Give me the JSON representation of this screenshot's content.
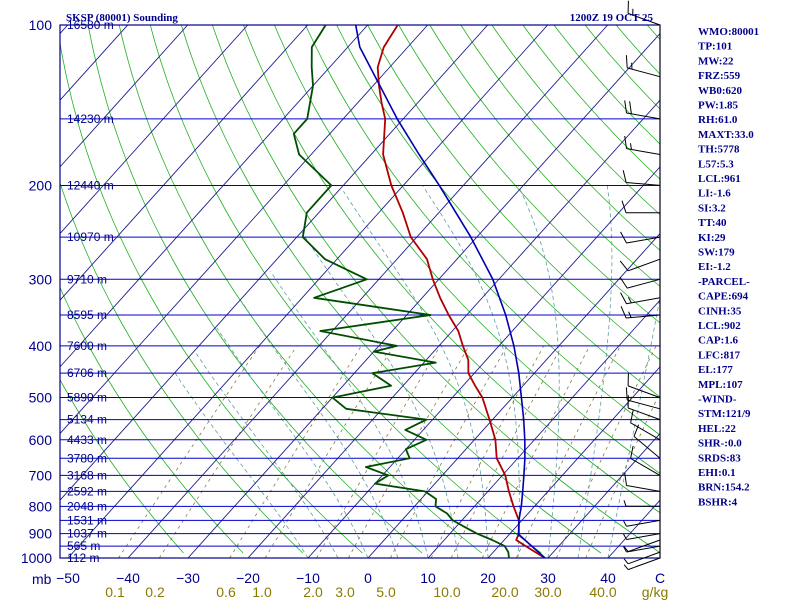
{
  "header": {
    "station": "SKSP (80001) Sounding",
    "time": "1200Z 19 OCT 25"
  },
  "colors": {
    "frame": "#00008b",
    "isobar": "#0000cd",
    "isotherm": "#1e1e8c",
    "dry_adiabat": "#22b022",
    "moist_adiabat": "#5f9ea0",
    "mixing_ratio": "#8b7a3a",
    "temperature": "#b00000",
    "dewpoint": "#004d00",
    "parcel": "#0000b0",
    "wind": "#000000"
  },
  "chart_data": {
    "type": "line",
    "title": "",
    "pressure_levels": [
      100,
      200,
      300,
      400,
      500,
      600,
      700,
      800,
      900,
      1000
    ],
    "pressure_axis_unit": "mb",
    "temperature_ticks": [
      -50,
      -40,
      -30,
      -20,
      -10,
      0,
      10,
      20,
      30,
      40,
      "C"
    ],
    "mixing_ratio_labels": [
      "0.1",
      "0.2",
      "0.6",
      "1.0",
      "2.0",
      "3.0",
      "5.0",
      "10.0",
      "20.0",
      "30.0",
      "40.0",
      "g/kg"
    ],
    "height_labels": [
      {
        "p": 100,
        "label": "16580 m"
      },
      {
        "p": 150,
        "label": "14230 m"
      },
      {
        "p": 200,
        "label": "12440 m"
      },
      {
        "p": 250,
        "label": "10970 m"
      },
      {
        "p": 300,
        "label": "9710 m"
      },
      {
        "p": 350,
        "label": "8595 m"
      },
      {
        "p": 400,
        "label": "7600 m"
      },
      {
        "p": 450,
        "label": "6706 m"
      },
      {
        "p": 500,
        "label": "5890 m"
      },
      {
        "p": 550,
        "label": "5134 m"
      },
      {
        "p": 600,
        "label": "4433 m"
      },
      {
        "p": 650,
        "label": "3780 m"
      },
      {
        "p": 700,
        "label": "3168 m"
      },
      {
        "p": 750,
        "label": "2592 m"
      },
      {
        "p": 800,
        "label": "2048 m"
      },
      {
        "p": 850,
        "label": "1531 m"
      },
      {
        "p": 900,
        "label": "1037 m"
      },
      {
        "p": 950,
        "label": "565 m"
      },
      {
        "p": 1000,
        "label": "112 m"
      }
    ],
    "series": [
      {
        "key": "temperature",
        "points": [
          [
            1000,
            29.5
          ],
          [
            975,
            27
          ],
          [
            950,
            24.5
          ],
          [
            925,
            22
          ],
          [
            900,
            21.5
          ],
          [
            875,
            20.5
          ],
          [
            850,
            19.5
          ],
          [
            800,
            16.5
          ],
          [
            750,
            13.5
          ],
          [
            700,
            10.5
          ],
          [
            650,
            6.5
          ],
          [
            600,
            3.5
          ],
          [
            550,
            -0.5
          ],
          [
            500,
            -5
          ],
          [
            475,
            -8
          ],
          [
            450,
            -11
          ],
          [
            425,
            -13
          ],
          [
            400,
            -16
          ],
          [
            375,
            -19
          ],
          [
            350,
            -23
          ],
          [
            325,
            -27
          ],
          [
            300,
            -31
          ],
          [
            275,
            -35
          ],
          [
            250,
            -41
          ],
          [
            225,
            -46
          ],
          [
            200,
            -52
          ],
          [
            175,
            -58
          ],
          [
            150,
            -63
          ],
          [
            140,
            -66
          ],
          [
            130,
            -69
          ],
          [
            120,
            -72
          ],
          [
            110,
            -74
          ],
          [
            100,
            -75
          ]
        ]
      },
      {
        "key": "dewpoint",
        "points": [
          [
            1000,
            23.5
          ],
          [
            975,
            22.5
          ],
          [
            950,
            21
          ],
          [
            925,
            18
          ],
          [
            900,
            14.5
          ],
          [
            875,
            11.5
          ],
          [
            850,
            8.5
          ],
          [
            825,
            6.5
          ],
          [
            800,
            3.5
          ],
          [
            775,
            2.5
          ],
          [
            750,
            -0.5
          ],
          [
            725,
            -10
          ],
          [
            700,
            -9
          ],
          [
            675,
            -14
          ],
          [
            650,
            -8
          ],
          [
            625,
            -10
          ],
          [
            600,
            -8
          ],
          [
            575,
            -13
          ],
          [
            550,
            -11
          ],
          [
            525,
            -26
          ],
          [
            500,
            -30
          ],
          [
            475,
            -22
          ],
          [
            450,
            -27
          ],
          [
            430,
            -18
          ],
          [
            410,
            -30
          ],
          [
            400,
            -27
          ],
          [
            375,
            -42
          ],
          [
            350,
            -26
          ],
          [
            325,
            -48
          ],
          [
            300,
            -42
          ],
          [
            275,
            -52
          ],
          [
            250,
            -59
          ],
          [
            225,
            -62
          ],
          [
            200,
            -62
          ],
          [
            175,
            -72
          ],
          [
            160,
            -76
          ],
          [
            150,
            -76
          ],
          [
            130,
            -80
          ],
          [
            120,
            -83
          ],
          [
            110,
            -86
          ],
          [
            100,
            -87
          ]
        ]
      },
      {
        "key": "parcel",
        "points": [
          [
            1000,
            29.5
          ],
          [
            950,
            25.5
          ],
          [
            902,
            21.5
          ],
          [
            875,
            20.5
          ],
          [
            850,
            19.5
          ],
          [
            800,
            17.8
          ],
          [
            750,
            15.8
          ],
          [
            700,
            13.6
          ],
          [
            650,
            11.2
          ],
          [
            600,
            8.4
          ],
          [
            550,
            5.2
          ],
          [
            500,
            1.5
          ],
          [
            450,
            -2.6
          ],
          [
            400,
            -7.5
          ],
          [
            350,
            -13.5
          ],
          [
            300,
            -21
          ],
          [
            250,
            -31
          ],
          [
            200,
            -44
          ],
          [
            175,
            -52
          ],
          [
            150,
            -61
          ],
          [
            125,
            -71
          ],
          [
            110,
            -78
          ],
          [
            100,
            -82
          ]
        ]
      }
    ],
    "wind_barbs": [
      {
        "p": 100,
        "dir": 290,
        "kt": 15
      },
      {
        "p": 125,
        "dir": 285,
        "kt": 15
      },
      {
        "p": 150,
        "dir": 280,
        "kt": 20
      },
      {
        "p": 175,
        "dir": 280,
        "kt": 15
      },
      {
        "p": 200,
        "dir": 275,
        "kt": 10
      },
      {
        "p": 225,
        "dir": 270,
        "kt": 10
      },
      {
        "p": 250,
        "dir": 260,
        "kt": 10
      },
      {
        "p": 275,
        "dir": 250,
        "kt": 10
      },
      {
        "p": 300,
        "dir": 255,
        "kt": 10
      },
      {
        "p": 325,
        "dir": 260,
        "kt": 15
      },
      {
        "p": 350,
        "dir": 265,
        "kt": 15
      },
      {
        "p": 500,
        "dir": 290,
        "kt": 10
      },
      {
        "p": 525,
        "dir": 285,
        "kt": 10
      },
      {
        "p": 550,
        "dir": 290,
        "kt": 10
      },
      {
        "p": 600,
        "dir": 300,
        "kt": 10
      },
      {
        "p": 650,
        "dir": 310,
        "kt": 10
      },
      {
        "p": 700,
        "dir": 300,
        "kt": 10
      },
      {
        "p": 750,
        "dir": 280,
        "kt": 10
      },
      {
        "p": 800,
        "dir": 270,
        "kt": 5
      },
      {
        "p": 850,
        "dir": 260,
        "kt": 5
      },
      {
        "p": 900,
        "dir": 260,
        "kt": 5
      },
      {
        "p": 925,
        "dir": 250,
        "kt": 5
      },
      {
        "p": 950,
        "dir": 260,
        "kt": 5
      },
      {
        "p": 975,
        "dir": 250,
        "kt": 5
      },
      {
        "p": 1000,
        "dir": 250,
        "kt": 5
      }
    ]
  },
  "indices": [
    "WMO:80001",
    "TP:101",
    "MW:22",
    "FRZ:559",
    "WB0:620",
    "PW:1.85",
    "RH:61.0",
    "MAXT:33.0",
    "TH:5778",
    "L57:5.3",
    "LCL:961",
    "LI:-1.6",
    "SI:3.2",
    "TT:40",
    "KI:29",
    "SW:179",
    "EI:-1.2",
    "-PARCEL-",
    "CAPE:694",
    "CINH:35",
    "LCL:902",
    "CAP:1.6",
    "LFC:817",
    "EL:177",
    "MPL:107",
    "-WIND-",
    "STM:121/9",
    "HEL:22",
    "SHR-:0.0",
    "SRDS:83",
    "EHI:0.1",
    "BRN:154.2",
    "BSHR:4"
  ]
}
